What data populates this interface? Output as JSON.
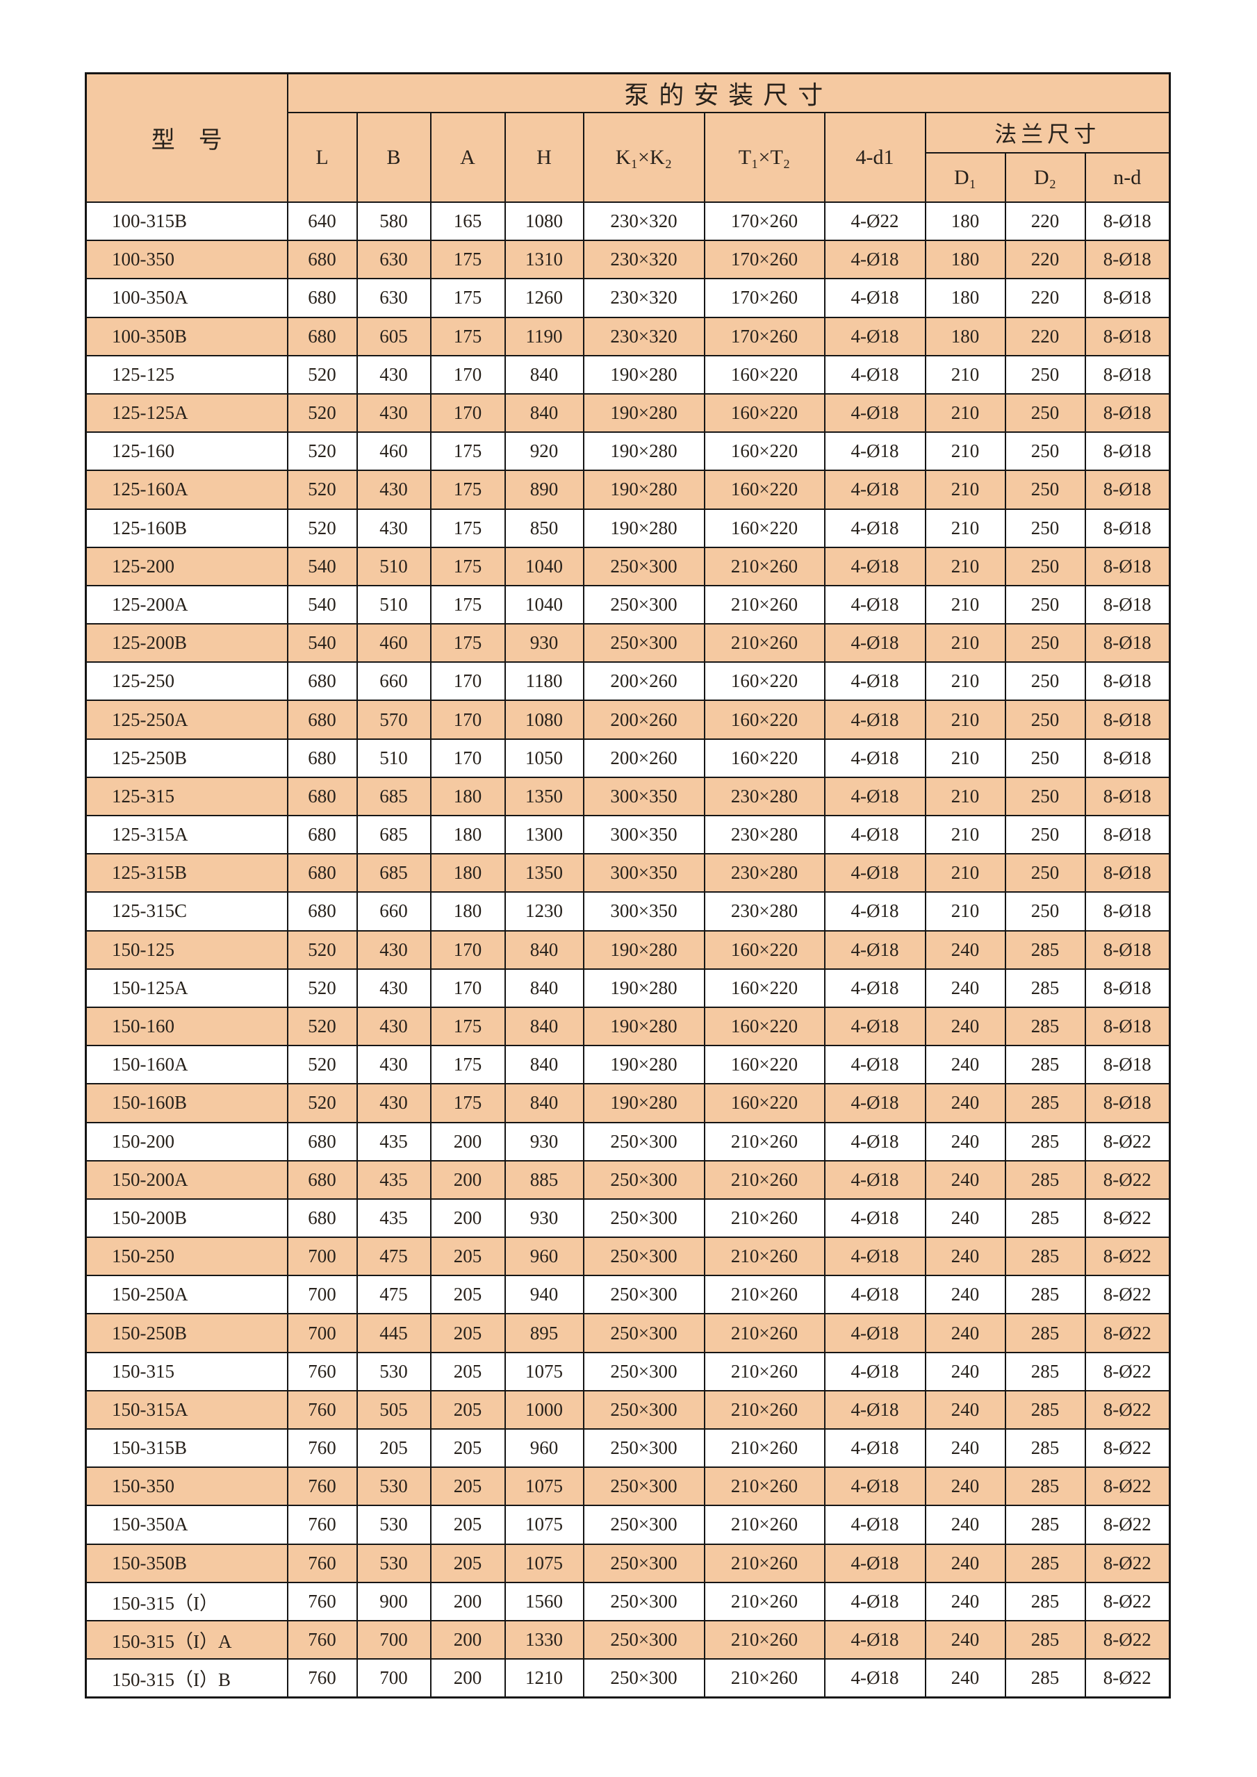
{
  "colors": {
    "row_highlight": "#F5C9A1",
    "row_plain": "#FFFFFF",
    "border": "#151515",
    "text": "#27211b"
  },
  "table": {
    "title": "泵的安装尺寸",
    "model_header": "型　号",
    "flange_header": "法兰尺寸",
    "columns": [
      "L",
      "B",
      "A",
      "H",
      "K₁×K₂",
      "T₁×T₂",
      "4-d1"
    ],
    "flange_columns": [
      "D₁",
      "D₂",
      "n-d"
    ],
    "rows": [
      [
        "100-315B",
        "640",
        "580",
        "165",
        "1080",
        "230×320",
        "170×260",
        "4-Ø22",
        "180",
        "220",
        "8-Ø18"
      ],
      [
        "100-350",
        "680",
        "630",
        "175",
        "1310",
        "230×320",
        "170×260",
        "4-Ø18",
        "180",
        "220",
        "8-Ø18"
      ],
      [
        "100-350A",
        "680",
        "630",
        "175",
        "1260",
        "230×320",
        "170×260",
        "4-Ø18",
        "180",
        "220",
        "8-Ø18"
      ],
      [
        "100-350B",
        "680",
        "605",
        "175",
        "1190",
        "230×320",
        "170×260",
        "4-Ø18",
        "180",
        "220",
        "8-Ø18"
      ],
      [
        "125-125",
        "520",
        "430",
        "170",
        "840",
        "190×280",
        "160×220",
        "4-Ø18",
        "210",
        "250",
        "8-Ø18"
      ],
      [
        "125-125A",
        "520",
        "430",
        "170",
        "840",
        "190×280",
        "160×220",
        "4-Ø18",
        "210",
        "250",
        "8-Ø18"
      ],
      [
        "125-160",
        "520",
        "460",
        "175",
        "920",
        "190×280",
        "160×220",
        "4-Ø18",
        "210",
        "250",
        "8-Ø18"
      ],
      [
        "125-160A",
        "520",
        "430",
        "175",
        "890",
        "190×280",
        "160×220",
        "4-Ø18",
        "210",
        "250",
        "8-Ø18"
      ],
      [
        "125-160B",
        "520",
        "430",
        "175",
        "850",
        "190×280",
        "160×220",
        "4-Ø18",
        "210",
        "250",
        "8-Ø18"
      ],
      [
        "125-200",
        "540",
        "510",
        "175",
        "1040",
        "250×300",
        "210×260",
        "4-Ø18",
        "210",
        "250",
        "8-Ø18"
      ],
      [
        "125-200A",
        "540",
        "510",
        "175",
        "1040",
        "250×300",
        "210×260",
        "4-Ø18",
        "210",
        "250",
        "8-Ø18"
      ],
      [
        "125-200B",
        "540",
        "460",
        "175",
        "930",
        "250×300",
        "210×260",
        "4-Ø18",
        "210",
        "250",
        "8-Ø18"
      ],
      [
        "125-250",
        "680",
        "660",
        "170",
        "1180",
        "200×260",
        "160×220",
        "4-Ø18",
        "210",
        "250",
        "8-Ø18"
      ],
      [
        "125-250A",
        "680",
        "570",
        "170",
        "1080",
        "200×260",
        "160×220",
        "4-Ø18",
        "210",
        "250",
        "8-Ø18"
      ],
      [
        "125-250B",
        "680",
        "510",
        "170",
        "1050",
        "200×260",
        "160×220",
        "4-Ø18",
        "210",
        "250",
        "8-Ø18"
      ],
      [
        "125-315",
        "680",
        "685",
        "180",
        "1350",
        "300×350",
        "230×280",
        "4-Ø18",
        "210",
        "250",
        "8-Ø18"
      ],
      [
        "125-315A",
        "680",
        "685",
        "180",
        "1300",
        "300×350",
        "230×280",
        "4-Ø18",
        "210",
        "250",
        "8-Ø18"
      ],
      [
        "125-315B",
        "680",
        "685",
        "180",
        "1350",
        "300×350",
        "230×280",
        "4-Ø18",
        "210",
        "250",
        "8-Ø18"
      ],
      [
        "125-315C",
        "680",
        "660",
        "180",
        "1230",
        "300×350",
        "230×280",
        "4-Ø18",
        "210",
        "250",
        "8-Ø18"
      ],
      [
        "150-125",
        "520",
        "430",
        "170",
        "840",
        "190×280",
        "160×220",
        "4-Ø18",
        "240",
        "285",
        "8-Ø18"
      ],
      [
        "150-125A",
        "520",
        "430",
        "170",
        "840",
        "190×280",
        "160×220",
        "4-Ø18",
        "240",
        "285",
        "8-Ø18"
      ],
      [
        "150-160",
        "520",
        "430",
        "175",
        "840",
        "190×280",
        "160×220",
        "4-Ø18",
        "240",
        "285",
        "8-Ø18"
      ],
      [
        "150-160A",
        "520",
        "430",
        "175",
        "840",
        "190×280",
        "160×220",
        "4-Ø18",
        "240",
        "285",
        "8-Ø18"
      ],
      [
        "150-160B",
        "520",
        "430",
        "175",
        "840",
        "190×280",
        "160×220",
        "4-Ø18",
        "240",
        "285",
        "8-Ø18"
      ],
      [
        "150-200",
        "680",
        "435",
        "200",
        "930",
        "250×300",
        "210×260",
        "4-Ø18",
        "240",
        "285",
        "8-Ø22"
      ],
      [
        "150-200A",
        "680",
        "435",
        "200",
        "885",
        "250×300",
        "210×260",
        "4-Ø18",
        "240",
        "285",
        "8-Ø22"
      ],
      [
        "150-200B",
        "680",
        "435",
        "200",
        "930",
        "250×300",
        "210×260",
        "4-Ø18",
        "240",
        "285",
        "8-Ø22"
      ],
      [
        "150-250",
        "700",
        "475",
        "205",
        "960",
        "250×300",
        "210×260",
        "4-Ø18",
        "240",
        "285",
        "8-Ø22"
      ],
      [
        "150-250A",
        "700",
        "475",
        "205",
        "940",
        "250×300",
        "210×260",
        "4-Ø18",
        "240",
        "285",
        "8-Ø22"
      ],
      [
        "150-250B",
        "700",
        "445",
        "205",
        "895",
        "250×300",
        "210×260",
        "4-Ø18",
        "240",
        "285",
        "8-Ø22"
      ],
      [
        "150-315",
        "760",
        "530",
        "205",
        "1075",
        "250×300",
        "210×260",
        "4-Ø18",
        "240",
        "285",
        "8-Ø22"
      ],
      [
        "150-315A",
        "760",
        "505",
        "205",
        "1000",
        "250×300",
        "210×260",
        "4-Ø18",
        "240",
        "285",
        "8-Ø22"
      ],
      [
        "150-315B",
        "760",
        "205",
        "205",
        "960",
        "250×300",
        "210×260",
        "4-Ø18",
        "240",
        "285",
        "8-Ø22"
      ],
      [
        "150-350",
        "760",
        "530",
        "205",
        "1075",
        "250×300",
        "210×260",
        "4-Ø18",
        "240",
        "285",
        "8-Ø22"
      ],
      [
        "150-350A",
        "760",
        "530",
        "205",
        "1075",
        "250×300",
        "210×260",
        "4-Ø18",
        "240",
        "285",
        "8-Ø22"
      ],
      [
        "150-350B",
        "760",
        "530",
        "205",
        "1075",
        "250×300",
        "210×260",
        "4-Ø18",
        "240",
        "285",
        "8-Ø22"
      ],
      [
        "150-315（I）",
        "760",
        "900",
        "200",
        "1560",
        "250×300",
        "210×260",
        "4-Ø18",
        "240",
        "285",
        "8-Ø22"
      ],
      [
        "150-315（I）A",
        "760",
        "700",
        "200",
        "1330",
        "250×300",
        "210×260",
        "4-Ø18",
        "240",
        "285",
        "8-Ø22"
      ],
      [
        "150-315（I）B",
        "760",
        "700",
        "200",
        "1210",
        "250×300",
        "210×260",
        "4-Ø18",
        "240",
        "285",
        "8-Ø22"
      ]
    ]
  }
}
